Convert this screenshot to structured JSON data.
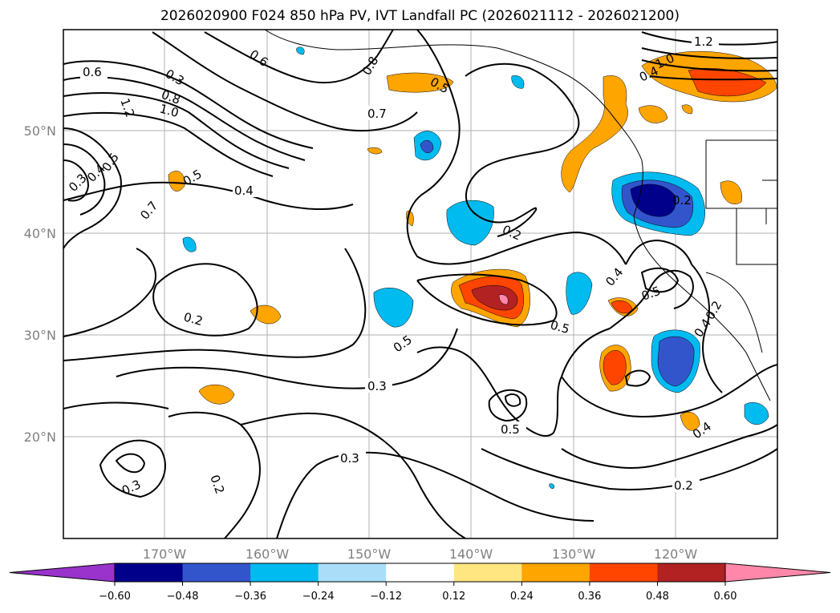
{
  "title": "2026020900 F024 850 hPa PV, IVT Landfall PC (2026021112 - 2026021200)",
  "map": {
    "lon_ticks": [
      "170°W",
      "160°W",
      "150°W",
      "140°W",
      "130°W",
      "120°W"
    ],
    "lat_ticks": [
      "50°N",
      "40°N",
      "30°N",
      "20°N"
    ],
    "gridlines": true
  },
  "contour_labels": [
    "0.6",
    "0.3",
    "0.6",
    "0.8",
    "0.5",
    "1.2",
    "1.0",
    "0.4",
    "0.7",
    "1.2",
    "0.8",
    "1.0",
    "0.2",
    "0.3",
    "0.4",
    "0.5",
    "0.5",
    "0.4",
    "0.7",
    "0.2",
    "0.4",
    "0.5",
    "0.2",
    "0.5",
    "0.5",
    "0.4",
    "0.2",
    "0.3",
    "0.5",
    "0.3",
    "0.4",
    "0.3",
    "0.2",
    "0.2"
  ],
  "colorbar": {
    "ticks": [
      "−0.60",
      "−0.48",
      "−0.36",
      "−0.24",
      "−0.12",
      "0.12",
      "0.24",
      "0.36",
      "0.48",
      "0.60"
    ],
    "colors": [
      "#9933cc",
      "#00008b",
      "#3355cc",
      "#00bbf0",
      "#aaddf8",
      "#ffffff",
      "#ffe680",
      "#ffa500",
      "#ff4500",
      "#b22222",
      "#ff88aa"
    ]
  }
}
